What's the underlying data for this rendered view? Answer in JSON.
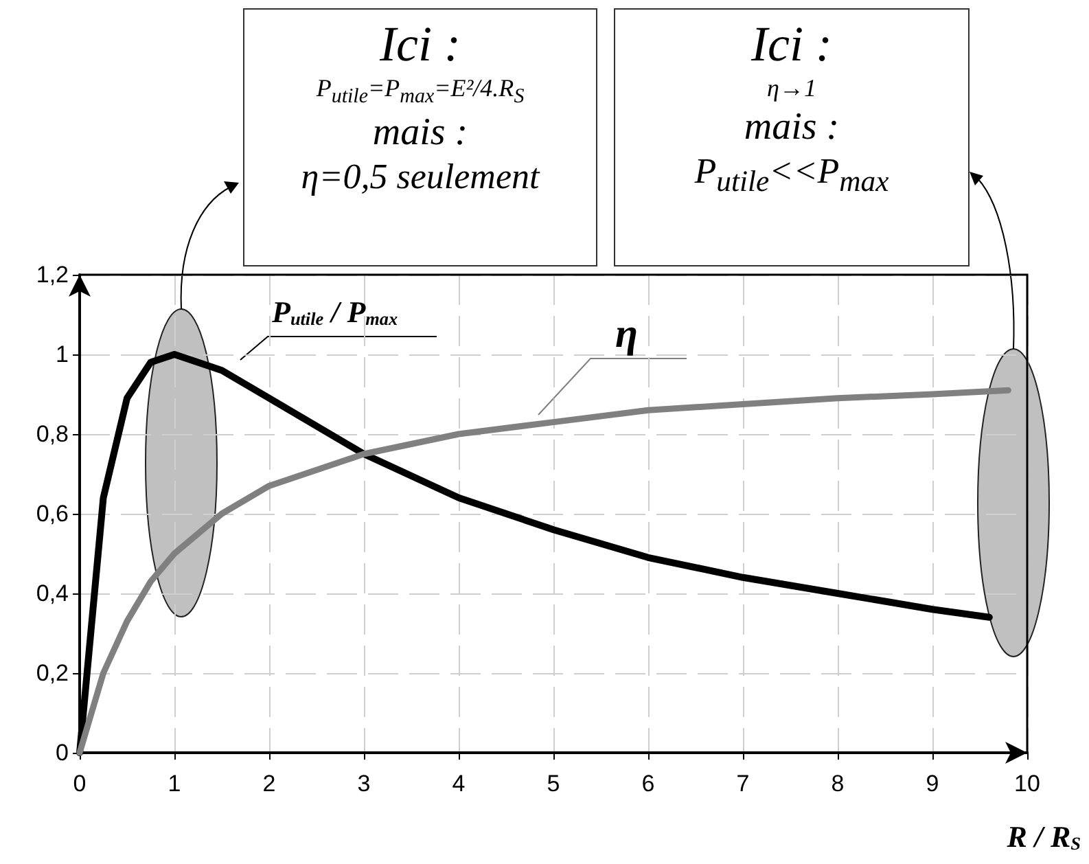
{
  "chart_data": {
    "type": "line",
    "xlabel": "R / R$_{S}$",
    "x": [
      0,
      0.25,
      0.5,
      0.75,
      1,
      1.5,
      2,
      3,
      4,
      5,
      6,
      7,
      8,
      9,
      9.6
    ],
    "series": [
      {
        "name": "P$_{utile}$ / P$_{max}$",
        "color": "#000000",
        "values": [
          0,
          0.64,
          0.89,
          0.98,
          1.0,
          0.96,
          0.89,
          0.75,
          0.64,
          0.56,
          0.49,
          0.44,
          0.4,
          0.36,
          0.34
        ]
      },
      {
        "name": "η",
        "color": "#808080",
        "x": [
          0,
          0.25,
          0.5,
          0.75,
          1,
          1.5,
          2,
          3,
          4,
          5,
          6,
          7,
          8,
          9,
          9.8
        ],
        "values": [
          0,
          0.2,
          0.33,
          0.43,
          0.5,
          0.6,
          0.67,
          0.75,
          0.8,
          0.83,
          0.86,
          0.875,
          0.89,
          0.9,
          0.91
        ]
      }
    ],
    "xlim": [
      0,
      10
    ],
    "xticks": [
      0,
      1,
      2,
      3,
      4,
      5,
      6,
      7,
      8,
      9,
      10
    ],
    "ylim": [
      0,
      1.2
    ],
    "yticks": [
      0,
      {
        "value": 0.2,
        "label": "0,2"
      },
      {
        "value": 0.4,
        "label": "0,4"
      },
      {
        "value": 0.6,
        "label": "0,6"
      },
      {
        "value": 0.8,
        "label": "0,8"
      },
      1,
      {
        "value": 1.2,
        "label": "1,2"
      }
    ],
    "grid": true,
    "legend": false,
    "marker": "none",
    "line_style": "solid",
    "annotations": [
      "Ici :\nP$_{utile}$=P$_{max}$=E²/4.R$_{S}$\nmais :\nη=0,5 seulement",
      "Ici :\nη→1\nmais :\nP$_{utile}$<<P$_{max}$"
    ]
  }
}
